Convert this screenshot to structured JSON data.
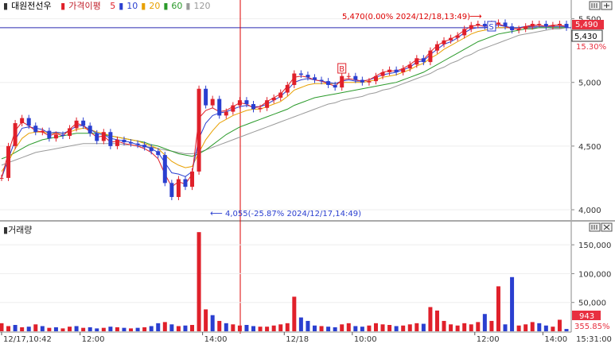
{
  "legend": {
    "title": "대원전선우",
    "indicator": "가격이평",
    "periods": [
      {
        "label": "5",
        "color": "#e0202a"
      },
      {
        "label": "10",
        "color": "#2a3fd0"
      },
      {
        "label": "20",
        "color": "#e8a000"
      },
      {
        "label": "60",
        "color": "#2a9a2a"
      },
      {
        "label": "120",
        "color": "#9a9a9a"
      }
    ]
  },
  "volume_title": "거래량",
  "chart_data": [
    {
      "type": "line",
      "name": "price",
      "y_ticks": [
        "5,500",
        "5,000",
        "4,500",
        "4,000"
      ],
      "ylim": [
        3950,
        5560
      ],
      "current_price": "5,430",
      "high_annotation": "5,470(0.00% 2024/12/18,13:49)",
      "low_annotation": "4,055(-25.87% 2024/12/17,14:49)",
      "high_arrow": "⟶",
      "low_arrow": "⟵",
      "markers": [
        {
          "label": "S",
          "x": 72
        },
        {
          "label": "B",
          "x": 50
        }
      ],
      "prev_close_line": 5430,
      "secondary_price_label": "5,490",
      "secondary_pct_label": "15.30%",
      "close": [
        4250,
        4500,
        4680,
        4720,
        4660,
        4610,
        4620,
        4560,
        4590,
        4580,
        4640,
        4700,
        4660,
        4600,
        4540,
        4610,
        4500,
        4550,
        4530,
        4520,
        4510,
        4490,
        4460,
        4430,
        4210,
        4100,
        4240,
        4180,
        4300,
        4950,
        4820,
        4870,
        4740,
        4770,
        4820,
        4860,
        4830,
        4790,
        4800,
        4860,
        4880,
        4920,
        4980,
        5070,
        5060,
        5040,
        5020,
        5010,
        4980,
        4960,
        5050,
        5050,
        5020,
        5000,
        5010,
        5050,
        5080,
        5100,
        5080,
        5110,
        5140,
        5190,
        5160,
        5250,
        5300,
        5330,
        5350,
        5370,
        5420,
        5450,
        5460,
        5440,
        5460,
        5470,
        5440,
        5410,
        5420,
        5440,
        5460,
        5460,
        5440,
        5450,
        5460,
        5430
      ],
      "ma5": [
        4250,
        4450,
        4620,
        4690,
        4660,
        4620,
        4610,
        4580,
        4600,
        4580,
        4630,
        4680,
        4660,
        4610,
        4570,
        4580,
        4530,
        4540,
        4520,
        4510,
        4500,
        4480,
        4450,
        4400,
        4280,
        4180,
        4220,
        4200,
        4280,
        4720,
        4780,
        4800,
        4770,
        4780,
        4810,
        4840,
        4830,
        4800,
        4810,
        4850,
        4880,
        4910,
        4970,
        5040,
        5050,
        5040,
        5020,
        5010,
        4990,
        4970,
        5020,
        5030,
        5020,
        5010,
        5020,
        5050,
        5080,
        5090,
        5090,
        5110,
        5140,
        5180,
        5180,
        5240,
        5290,
        5320,
        5340,
        5370,
        5410,
        5440,
        5450,
        5440,
        5450,
        5460,
        5440,
        5420,
        5420,
        5440,
        5450,
        5450,
        5440,
        5450,
        5450,
        5440
      ],
      "ma10": [
        4250,
        4400,
        4550,
        4640,
        4650,
        4640,
        4630,
        4600,
        4610,
        4600,
        4620,
        4660,
        4660,
        4630,
        4600,
        4590,
        4560,
        4550,
        4540,
        4530,
        4510,
        4500,
        4480,
        4450,
        4370,
        4290,
        4280,
        4260,
        4300,
        4560,
        4680,
        4740,
        4760,
        4770,
        4790,
        4810,
        4820,
        4810,
        4810,
        4830,
        4860,
        4890,
        4940,
        5000,
        5020,
        5030,
        5020,
        5010,
        5000,
        4990,
        5010,
        5020,
        5010,
        5010,
        5020,
        5040,
        5060,
        5070,
        5080,
        5100,
        5120,
        5160,
        5170,
        5220,
        5260,
        5300,
        5320,
        5350,
        5390,
        5420,
        5430,
        5430,
        5440,
        5450,
        5440,
        5430,
        5430,
        5440,
        5440,
        5440,
        5440,
        5440,
        5440,
        5440
      ],
      "ma20": [
        4300,
        4380,
        4480,
        4560,
        4600,
        4610,
        4610,
        4600,
        4600,
        4600,
        4610,
        4630,
        4640,
        4630,
        4610,
        4600,
        4580,
        4570,
        4560,
        4550,
        4540,
        4520,
        4500,
        4480,
        4430,
        4380,
        4350,
        4330,
        4340,
        4450,
        4550,
        4620,
        4680,
        4710,
        4740,
        4760,
        4780,
        4790,
        4790,
        4810,
        4830,
        4850,
        4890,
        4940,
        4960,
        4980,
        4990,
        4990,
        4990,
        4990,
        5000,
        5000,
        5000,
        5000,
        5010,
        5020,
        5040,
        5050,
        5060,
        5080,
        5100,
        5130,
        5150,
        5190,
        5220,
        5260,
        5290,
        5320,
        5350,
        5380,
        5400,
        5410,
        5420,
        5430,
        5430,
        5430,
        5430,
        5430,
        5440,
        5440,
        5440,
        5440,
        5440,
        5440
      ],
      "ma60": [
        4400,
        4420,
        4450,
        4480,
        4510,
        4530,
        4550,
        4560,
        4570,
        4580,
        4590,
        4600,
        4600,
        4600,
        4600,
        4590,
        4580,
        4570,
        4560,
        4550,
        4540,
        4530,
        4510,
        4500,
        4480,
        4460,
        4440,
        4430,
        4420,
        4440,
        4470,
        4510,
        4550,
        4590,
        4620,
        4650,
        4670,
        4690,
        4710,
        4730,
        4750,
        4770,
        4790,
        4820,
        4840,
        4860,
        4880,
        4890,
        4900,
        4910,
        4920,
        4930,
        4940,
        4950,
        4960,
        4970,
        4980,
        4990,
        5000,
        5020,
        5040,
        5060,
        5080,
        5110,
        5140,
        5170,
        5200,
        5230,
        5260,
        5290,
        5320,
        5340,
        5360,
        5380,
        5390,
        5400,
        5410,
        5420,
        5420,
        5430,
        5430,
        5430,
        5430,
        5430
      ],
      "ma120": [
        4350,
        4370,
        4390,
        4410,
        4430,
        4450,
        4460,
        4470,
        4480,
        4490,
        4500,
        4510,
        4520,
        4520,
        4520,
        4520,
        4520,
        4520,
        4510,
        4510,
        4500,
        4500,
        4490,
        4480,
        4470,
        4460,
        4450,
        4440,
        4440,
        4450,
        4470,
        4490,
        4510,
        4530,
        4550,
        4570,
        4590,
        4610,
        4630,
        4650,
        4670,
        4690,
        4710,
        4730,
        4750,
        4770,
        4790,
        4810,
        4830,
        4840,
        4860,
        4870,
        4880,
        4890,
        4910,
        4920,
        4940,
        4950,
        4970,
        4990,
        5010,
        5030,
        5050,
        5070,
        5100,
        5120,
        5150,
        5170,
        5200,
        5220,
        5250,
        5270,
        5290,
        5310,
        5330,
        5350,
        5370,
        5380,
        5390,
        5400,
        5410,
        5420,
        5420,
        5430
      ]
    },
    {
      "type": "bar",
      "name": "volume",
      "y_ticks": [
        "150,000",
        "100,000",
        "50,000"
      ],
      "ylim": [
        0,
        175000
      ],
      "current_volume": "943",
      "turnover_label": "355.85%",
      "x_labels": [
        "12/17,10:42",
        "12:00",
        "14:00",
        "12/18",
        "10:00",
        "12:00",
        "14:00"
      ],
      "time_label": "15:31:00",
      "values": [
        14000,
        9000,
        11000,
        7000,
        8000,
        12000,
        9000,
        6000,
        7000,
        5000,
        8000,
        9000,
        6000,
        7000,
        5000,
        6000,
        8000,
        7000,
        6000,
        5000,
        6000,
        7000,
        9000,
        14000,
        16000,
        12000,
        9000,
        10000,
        11000,
        172000,
        38000,
        28000,
        18000,
        14000,
        12000,
        10000,
        11000,
        9000,
        8000,
        8000,
        10000,
        12000,
        14000,
        60000,
        24000,
        18000,
        10000,
        9000,
        8000,
        7000,
        12000,
        14000,
        9000,
        8000,
        10000,
        14000,
        12000,
        11000,
        9000,
        10000,
        12000,
        14000,
        13000,
        42000,
        36000,
        18000,
        12000,
        10000,
        14000,
        12000,
        16000,
        30000,
        18000,
        78000,
        12000,
        94000,
        10000,
        12000,
        16000,
        14000,
        10000,
        8000,
        20000,
        4000
      ],
      "up": [
        1,
        1,
        0,
        1,
        0,
        1,
        0,
        1,
        0,
        1,
        1,
        0,
        1,
        0,
        0,
        1,
        0,
        1,
        0,
        1,
        0,
        1,
        0,
        0,
        1,
        0,
        1,
        0,
        1,
        1,
        1,
        0,
        1,
        0,
        1,
        1,
        0,
        0,
        1,
        1,
        1,
        1,
        1,
        1,
        0,
        0,
        0,
        1,
        0,
        0,
        1,
        1,
        0,
        0,
        1,
        1,
        1,
        1,
        0,
        1,
        1,
        1,
        0,
        1,
        1,
        1,
        1,
        1,
        1,
        1,
        1,
        0,
        1,
        1,
        0,
        0,
        1,
        1,
        1,
        0,
        0,
        1,
        1,
        0
      ]
    }
  ],
  "toolbar_icons": [
    "ruler-icon",
    "zoom-icon"
  ]
}
